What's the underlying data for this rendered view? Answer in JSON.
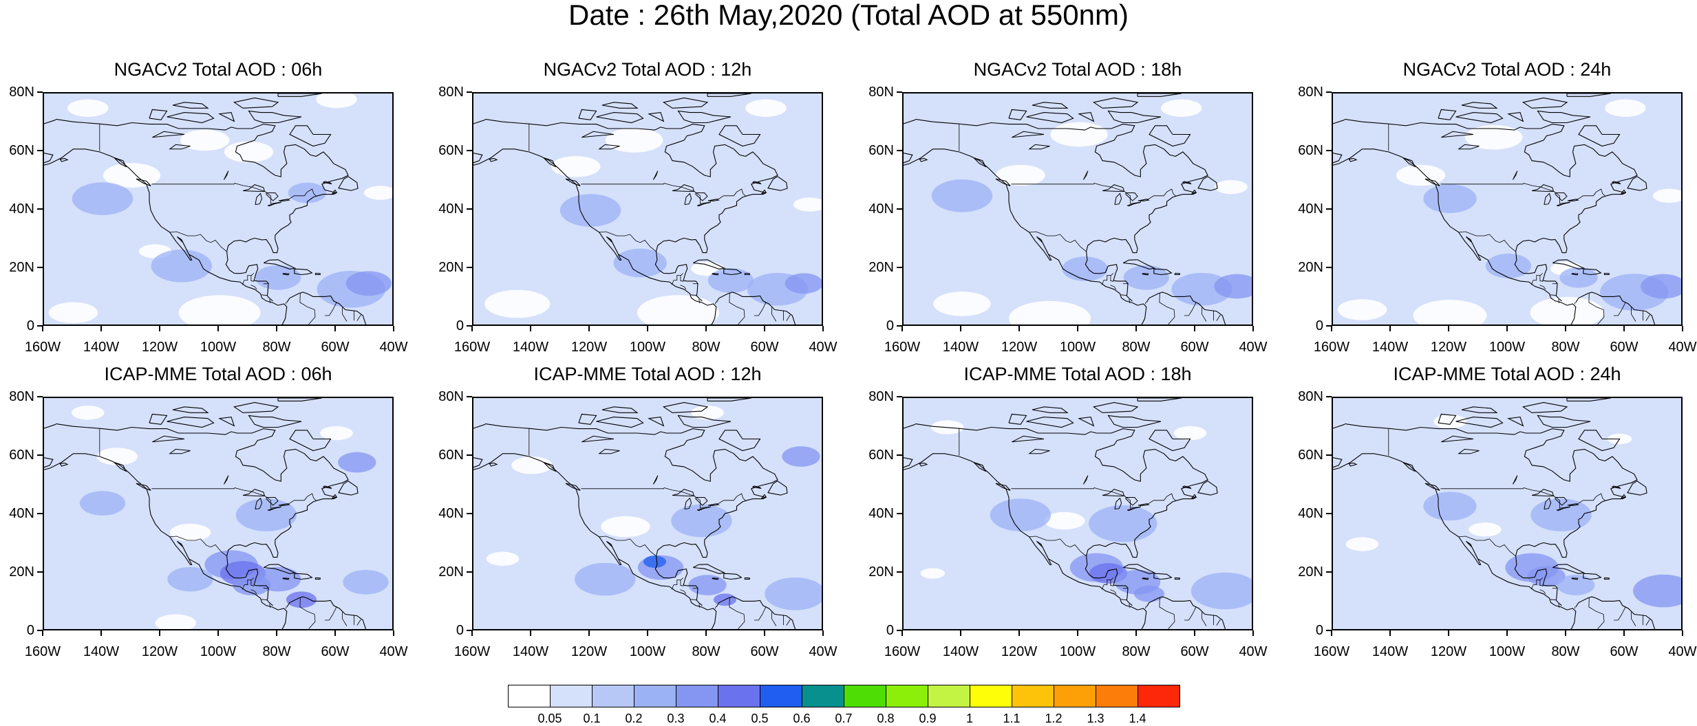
{
  "title": "Date : 26th May,2020 (Total AOD at 550nm)",
  "panels": [
    {
      "title": "NGACv2 Total AOD : 06h",
      "model": "NGACv2"
    },
    {
      "title": "NGACv2 Total AOD : 12h",
      "model": "NGACv2"
    },
    {
      "title": "NGACv2 Total AOD : 18h",
      "model": "NGACv2"
    },
    {
      "title": "NGACv2 Total AOD : 24h",
      "model": "NGACv2"
    },
    {
      "title": "ICAP-MME Total AOD : 06h",
      "model": "ICAP-MME"
    },
    {
      "title": "ICAP-MME Total AOD : 12h",
      "model": "ICAP-MME"
    },
    {
      "title": "ICAP-MME Total AOD : 18h",
      "model": "ICAP-MME"
    },
    {
      "title": "ICAP-MME Total AOD : 24h",
      "model": "ICAP-MME"
    }
  ],
  "lat_labels": [
    "80N",
    "60N",
    "40N",
    "20N",
    "0"
  ],
  "lon_labels": [
    "160W",
    "140W",
    "120W",
    "100W",
    "80W",
    "60W",
    "40W"
  ],
  "colorbar": {
    "colors": [
      "#ffffff",
      "#d5e0fb",
      "#b7c8f7",
      "#9bb2f5",
      "#8496f2",
      "#6a72ee",
      "#1f5ef0",
      "#07908e",
      "#4fdd06",
      "#8bef0a",
      "#c3f343",
      "#fdfe08",
      "#fdc20a",
      "#fda008",
      "#fd7d0a",
      "#fd280a"
    ],
    "labels": [
      "0.05",
      "0.1",
      "0.2",
      "0.3",
      "0.4",
      "0.5",
      "0.6",
      "0.7",
      "0.8",
      "0.9",
      "1",
      "1.1",
      "1.2",
      "1.3",
      "1.4"
    ]
  }
}
